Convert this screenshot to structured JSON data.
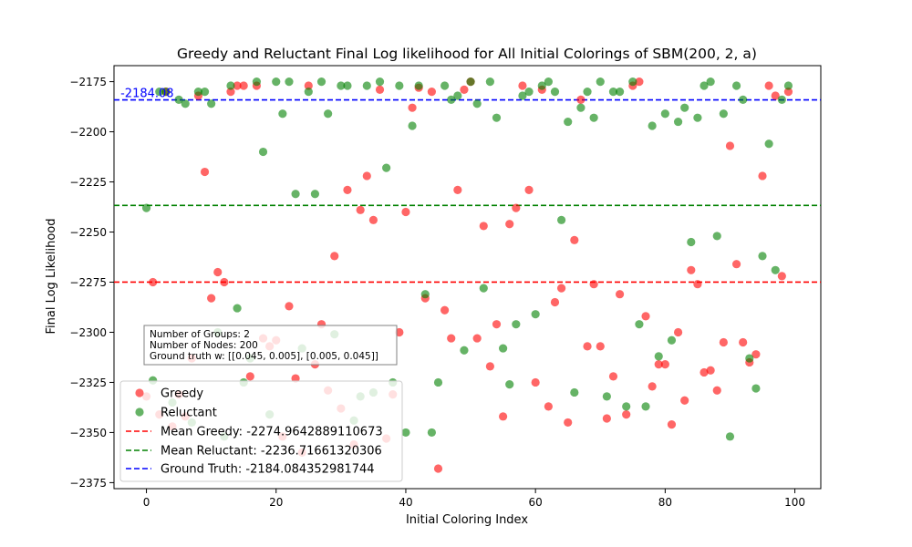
{
  "chart_data": {
    "type": "scatter",
    "title": "Greedy and Reluctant Final Log likelihood for All Initial Colorings of SBM(200, 2, a)",
    "xlabel": "Initial Coloring Index",
    "ylabel": "Final Log Likelihood",
    "xlim": [
      -5,
      104
    ],
    "ylim": [
      -2378,
      -2167
    ],
    "xticks": [
      0,
      20,
      40,
      60,
      80,
      100
    ],
    "yticks": [
      -2375,
      -2350,
      -2325,
      -2300,
      -2275,
      -2250,
      -2225,
      -2200,
      -2175
    ],
    "grid": false,
    "legend_position": "lower-left",
    "series": [
      {
        "name": "Greedy",
        "color": "#ff0000",
        "alpha": 0.6,
        "points": [
          [
            0,
            -2332
          ],
          [
            1,
            -2275
          ],
          [
            2,
            -2341
          ],
          [
            3,
            -2180
          ],
          [
            4,
            -2347
          ],
          [
            5,
            -2331
          ],
          [
            6,
            -2342
          ],
          [
            7,
            -2313
          ],
          [
            8,
            -2182
          ],
          [
            9,
            -2220
          ],
          [
            10,
            -2283
          ],
          [
            11,
            -2270
          ],
          [
            12,
            -2275
          ],
          [
            13,
            -2180
          ],
          [
            14,
            -2177
          ],
          [
            15,
            -2177
          ],
          [
            16,
            -2322
          ],
          [
            17,
            -2177
          ],
          [
            18,
            -2303
          ],
          [
            19,
            -2307
          ],
          [
            20,
            -2304
          ],
          [
            21,
            -2352
          ],
          [
            22,
            -2287
          ],
          [
            23,
            -2323
          ],
          [
            24,
            -2360
          ],
          [
            25,
            -2177
          ],
          [
            26,
            -2316
          ],
          [
            27,
            -2296
          ],
          [
            28,
            -2329
          ],
          [
            29,
            -2262
          ],
          [
            30,
            -2338
          ],
          [
            31,
            -2229
          ],
          [
            32,
            -2356
          ],
          [
            33,
            -2239
          ],
          [
            34,
            -2222
          ],
          [
            35,
            -2244
          ],
          [
            36,
            -2179
          ],
          [
            37,
            -2353
          ],
          [
            38,
            -2331
          ],
          [
            39,
            -2300
          ],
          [
            40,
            -2240
          ],
          [
            41,
            -2188
          ],
          [
            42,
            -2178
          ],
          [
            43,
            -2283
          ],
          [
            44,
            -2180
          ],
          [
            45,
            -2368
          ],
          [
            46,
            -2289
          ],
          [
            47,
            -2303
          ],
          [
            48,
            -2229
          ],
          [
            49,
            -2179
          ],
          [
            50,
            -2175
          ],
          [
            51,
            -2303
          ],
          [
            52,
            -2247
          ],
          [
            53,
            -2317
          ],
          [
            54,
            -2296
          ],
          [
            55,
            -2342
          ],
          [
            56,
            -2246
          ],
          [
            57,
            -2238
          ],
          [
            58,
            -2177
          ],
          [
            59,
            -2229
          ],
          [
            60,
            -2325
          ],
          [
            61,
            -2179
          ],
          [
            62,
            -2337
          ],
          [
            63,
            -2285
          ],
          [
            64,
            -2278
          ],
          [
            65,
            -2345
          ],
          [
            66,
            -2254
          ],
          [
            67,
            -2184
          ],
          [
            68,
            -2307
          ],
          [
            69,
            -2276
          ],
          [
            70,
            -2307
          ],
          [
            71,
            -2343
          ],
          [
            72,
            -2322
          ],
          [
            73,
            -2281
          ],
          [
            74,
            -2341
          ],
          [
            75,
            -2177
          ],
          [
            76,
            -2175
          ],
          [
            77,
            -2292
          ],
          [
            78,
            -2327
          ],
          [
            79,
            -2316
          ],
          [
            80,
            -2316
          ],
          [
            81,
            -2346
          ],
          [
            82,
            -2300
          ],
          [
            83,
            -2334
          ],
          [
            84,
            -2269
          ],
          [
            85,
            -2276
          ],
          [
            86,
            -2320
          ],
          [
            87,
            -2319
          ],
          [
            88,
            -2329
          ],
          [
            89,
            -2305
          ],
          [
            90,
            -2207
          ],
          [
            91,
            -2266
          ],
          [
            92,
            -2305
          ],
          [
            93,
            -2315
          ],
          [
            94,
            -2311
          ],
          [
            95,
            -2222
          ],
          [
            96,
            -2177
          ],
          [
            97,
            -2182
          ],
          [
            98,
            -2272
          ],
          [
            99,
            -2180
          ]
        ]
      },
      {
        "name": "Reluctant",
        "color": "#008000",
        "alpha": 0.6,
        "points": [
          [
            0,
            -2238
          ],
          [
            1,
            -2324
          ],
          [
            2,
            -2180
          ],
          [
            3,
            -2180
          ],
          [
            4,
            -2335
          ],
          [
            5,
            -2184
          ],
          [
            6,
            -2186
          ],
          [
            7,
            -2345
          ],
          [
            8,
            -2180
          ],
          [
            9,
            -2180
          ],
          [
            10,
            -2186
          ],
          [
            11,
            -2300
          ],
          [
            12,
            -2352
          ],
          [
            13,
            -2177
          ],
          [
            14,
            -2288
          ],
          [
            15,
            -2325
          ],
          [
            16,
            -2313
          ],
          [
            17,
            -2175
          ],
          [
            18,
            -2210
          ],
          [
            19,
            -2341
          ],
          [
            20,
            -2175
          ],
          [
            21,
            -2191
          ],
          [
            22,
            -2175
          ],
          [
            23,
            -2231
          ],
          [
            24,
            -2308
          ],
          [
            25,
            -2180
          ],
          [
            26,
            -2231
          ],
          [
            27,
            -2175
          ],
          [
            28,
            -2191
          ],
          [
            29,
            -2301
          ],
          [
            30,
            -2177
          ],
          [
            31,
            -2177
          ],
          [
            32,
            -2344
          ],
          [
            33,
            -2332
          ],
          [
            34,
            -2177
          ],
          [
            35,
            -2330
          ],
          [
            36,
            -2175
          ],
          [
            37,
            -2218
          ],
          [
            38,
            -2325
          ],
          [
            39,
            -2177
          ],
          [
            40,
            -2350
          ],
          [
            41,
            -2197
          ],
          [
            42,
            -2177
          ],
          [
            43,
            -2281
          ],
          [
            44,
            -2350
          ],
          [
            45,
            -2325
          ],
          [
            46,
            -2177
          ],
          [
            47,
            -2184
          ],
          [
            48,
            -2182
          ],
          [
            49,
            -2309
          ],
          [
            50,
            -2175
          ],
          [
            51,
            -2186
          ],
          [
            52,
            -2278
          ],
          [
            53,
            -2175
          ],
          [
            54,
            -2193
          ],
          [
            55,
            -2308
          ],
          [
            56,
            -2326
          ],
          [
            57,
            -2296
          ],
          [
            58,
            -2182
          ],
          [
            59,
            -2180
          ],
          [
            60,
            -2291
          ],
          [
            61,
            -2177
          ],
          [
            62,
            -2175
          ],
          [
            63,
            -2180
          ],
          [
            64,
            -2244
          ],
          [
            65,
            -2195
          ],
          [
            66,
            -2330
          ],
          [
            67,
            -2188
          ],
          [
            68,
            -2180
          ],
          [
            69,
            -2193
          ],
          [
            70,
            -2175
          ],
          [
            71,
            -2332
          ],
          [
            72,
            -2180
          ],
          [
            73,
            -2180
          ],
          [
            74,
            -2337
          ],
          [
            75,
            -2175
          ],
          [
            76,
            -2296
          ],
          [
            77,
            -2337
          ],
          [
            78,
            -2197
          ],
          [
            79,
            -2312
          ],
          [
            80,
            -2191
          ],
          [
            81,
            -2304
          ],
          [
            82,
            -2195
          ],
          [
            83,
            -2188
          ],
          [
            84,
            -2255
          ],
          [
            85,
            -2193
          ],
          [
            86,
            -2177
          ],
          [
            87,
            -2175
          ],
          [
            88,
            -2252
          ],
          [
            89,
            -2191
          ],
          [
            90,
            -2352
          ],
          [
            91,
            -2177
          ],
          [
            92,
            -2184
          ],
          [
            93,
            -2313
          ],
          [
            94,
            -2328
          ],
          [
            95,
            -2262
          ],
          [
            96,
            -2206
          ],
          [
            97,
            -2269
          ],
          [
            98,
            -2184
          ],
          [
            99,
            -2177
          ]
        ]
      }
    ],
    "reference_lines": [
      {
        "name": "Mean Greedy: -2274.9642889110673",
        "y": -2274.9642889110673,
        "color": "#ff0000",
        "style": "dashed"
      },
      {
        "name": "Mean Reluctant: -2236.71661320306",
        "y": -2236.71661320306,
        "color": "#008000",
        "style": "dashed"
      },
      {
        "name": "Ground Truth: -2184.084352981744",
        "y": -2184.084352981744,
        "color": "#0000ff",
        "style": "dashed"
      }
    ],
    "annotations": [
      {
        "text": "-2184.08",
        "x": -4,
        "y": -2184.08,
        "color": "#0000ff"
      }
    ],
    "info_box": [
      "Number of Groups: 2",
      "Number of Nodes: 200",
      "Ground truth w: [[0.045, 0.005], [0.005, 0.045]]"
    ]
  }
}
